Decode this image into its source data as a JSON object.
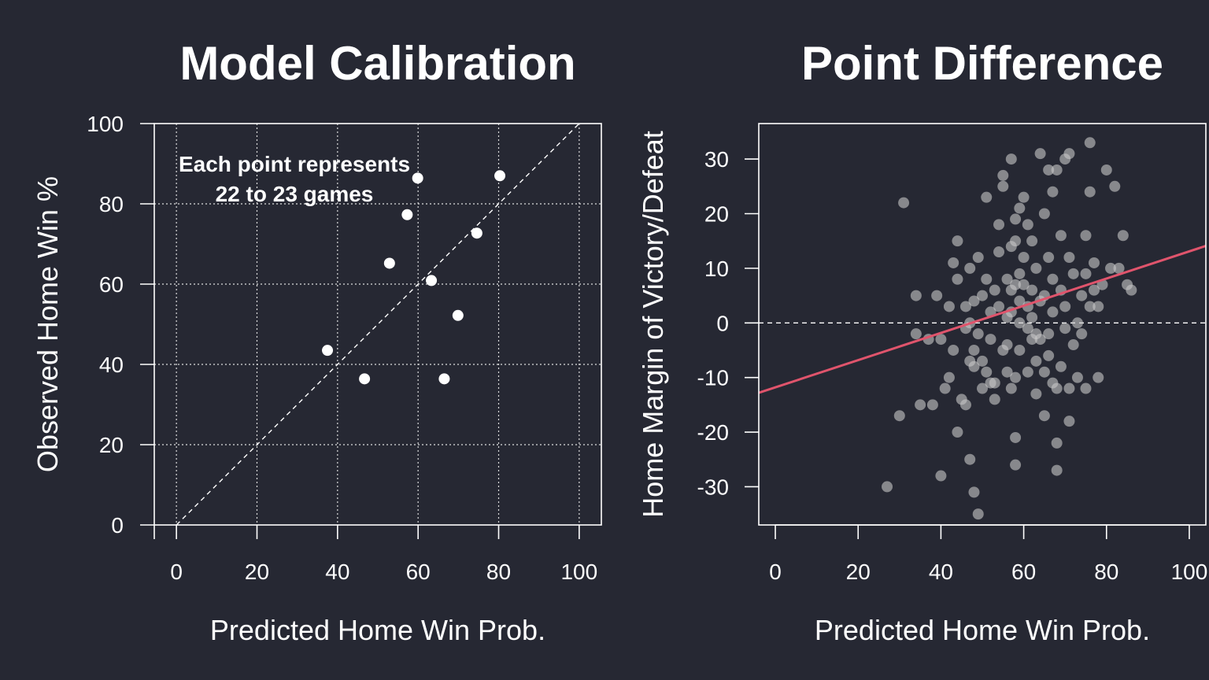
{
  "colors": {
    "background": "#262833",
    "foreground": "#ffffff",
    "points_left": "#ffffff",
    "points_right": "#c8c8c8",
    "regression_line": "#e0546c"
  },
  "chart_data": [
    {
      "type": "scatter",
      "title": "Model Calibration",
      "xlabel": "Predicted Home Win Prob.",
      "ylabel": "Observed Home Win %",
      "xlim": [
        -5.5,
        105.5
      ],
      "ylim": [
        0,
        100
      ],
      "xticks": [
        "0",
        "20",
        "40",
        "60",
        "80",
        "100"
      ],
      "yticks": [
        "0",
        "20",
        "40",
        "60",
        "80",
        "100"
      ],
      "grid": true,
      "reference_line": "y = x",
      "annotation": [
        "Each point represents",
        "22 to 23 games"
      ],
      "points": [
        {
          "x": 37.5,
          "y": 43.5
        },
        {
          "x": 46.7,
          "y": 36.4
        },
        {
          "x": 52.9,
          "y": 65.2
        },
        {
          "x": 57.3,
          "y": 77.3
        },
        {
          "x": 59.9,
          "y": 86.4
        },
        {
          "x": 63.3,
          "y": 60.9
        },
        {
          "x": 66.5,
          "y": 36.4
        },
        {
          "x": 69.9,
          "y": 52.2
        },
        {
          "x": 74.6,
          "y": 72.7
        },
        {
          "x": 80.3,
          "y": 87.0
        }
      ]
    },
    {
      "type": "scatter",
      "title": "Point Difference",
      "xlabel": "Predicted Home Win Prob.",
      "ylabel": "Home Margin of Victory/Defeat",
      "xlim": [
        -4,
        104
      ],
      "ylim": [
        -37,
        36.5
      ],
      "xticks": [
        "0",
        "20",
        "40",
        "60",
        "80",
        "100"
      ],
      "yticks": [
        "-30",
        "-20",
        "-10",
        "0",
        "10",
        "20",
        "30"
      ],
      "grid": false,
      "zero_line": true,
      "trend_line": {
        "slope": 0.249,
        "intercept": -11.8
      },
      "points": [
        [
          31,
          22
        ],
        [
          27,
          -30
        ],
        [
          30,
          -17
        ],
        [
          34,
          5
        ],
        [
          35,
          -15
        ],
        [
          37,
          -3
        ],
        [
          34,
          -2
        ],
        [
          38,
          -15
        ],
        [
          39,
          5
        ],
        [
          40,
          -28
        ],
        [
          40,
          -3
        ],
        [
          41,
          -12
        ],
        [
          42,
          3
        ],
        [
          42,
          -10
        ],
        [
          43,
          11
        ],
        [
          43,
          -5
        ],
        [
          44,
          15
        ],
        [
          44,
          8
        ],
        [
          45,
          -14
        ],
        [
          46,
          -15
        ],
        [
          46,
          3
        ],
        [
          46,
          -1
        ],
        [
          47,
          0
        ],
        [
          47,
          -7
        ],
        [
          47,
          10
        ],
        [
          48,
          -5
        ],
        [
          48,
          -8
        ],
        [
          48,
          4
        ],
        [
          49,
          -2
        ],
        [
          49,
          12
        ],
        [
          50,
          -7
        ],
        [
          50,
          -12
        ],
        [
          50,
          5
        ],
        [
          51,
          23
        ],
        [
          51,
          -9
        ],
        [
          51,
          8
        ],
        [
          52,
          -3
        ],
        [
          52,
          -11
        ],
        [
          52,
          2
        ],
        [
          53,
          6
        ],
        [
          53,
          -14
        ],
        [
          54,
          13
        ],
        [
          54,
          18
        ],
        [
          54,
          3
        ],
        [
          55,
          -5
        ],
        [
          55,
          27
        ],
        [
          55,
          25
        ],
        [
          56,
          -9
        ],
        [
          56,
          -4
        ],
        [
          56,
          8
        ],
        [
          56,
          1
        ],
        [
          57,
          30
        ],
        [
          57,
          14
        ],
        [
          57,
          -12
        ],
        [
          57,
          6
        ],
        [
          57,
          2
        ],
        [
          58,
          19
        ],
        [
          58,
          -21
        ],
        [
          58,
          -26
        ],
        [
          58,
          7
        ],
        [
          58,
          15
        ],
        [
          59,
          -5
        ],
        [
          59,
          21
        ],
        [
          59,
          9
        ],
        [
          59,
          4
        ],
        [
          59,
          0
        ],
        [
          60,
          23
        ],
        [
          60,
          7
        ],
        [
          60,
          12
        ],
        [
          61,
          -1
        ],
        [
          61,
          -9
        ],
        [
          61,
          3
        ],
        [
          61,
          18
        ],
        [
          62,
          1
        ],
        [
          62,
          -3
        ],
        [
          62,
          6
        ],
        [
          62,
          15
        ],
        [
          63,
          -7
        ],
        [
          63,
          -2
        ],
        [
          63,
          10
        ],
        [
          64,
          31
        ],
        [
          64,
          -3
        ],
        [
          64,
          4
        ],
        [
          65,
          -9
        ],
        [
          65,
          -17
        ],
        [
          65,
          20
        ],
        [
          65,
          5
        ],
        [
          66,
          -2
        ],
        [
          66,
          12
        ],
        [
          66,
          28
        ],
        [
          66,
          -6
        ],
        [
          67,
          -11
        ],
        [
          67,
          2
        ],
        [
          67,
          24
        ],
        [
          67,
          8
        ],
        [
          68,
          -27
        ],
        [
          68,
          -22
        ],
        [
          68,
          28
        ],
        [
          68,
          -12
        ],
        [
          69,
          16
        ],
        [
          69,
          6
        ],
        [
          69,
          -8
        ],
        [
          70,
          30
        ],
        [
          70,
          -1
        ],
        [
          70,
          3
        ],
        [
          71,
          -18
        ],
        [
          71,
          -12
        ],
        [
          71,
          31
        ],
        [
          71,
          12
        ],
        [
          72,
          9
        ],
        [
          72,
          -4
        ],
        [
          73,
          -10
        ],
        [
          73,
          0
        ],
        [
          74,
          -2
        ],
        [
          74,
          5
        ],
        [
          75,
          16
        ],
        [
          75,
          -12
        ],
        [
          75,
          9
        ],
        [
          76,
          33
        ],
        [
          76,
          24
        ],
        [
          76,
          3
        ],
        [
          77,
          6
        ],
        [
          77,
          11
        ],
        [
          78,
          -10
        ],
        [
          78,
          3
        ],
        [
          79,
          7
        ],
        [
          80,
          28
        ],
        [
          81,
          10
        ],
        [
          82,
          25
        ],
        [
          83,
          10
        ],
        [
          84,
          16
        ],
        [
          85,
          7
        ],
        [
          86,
          6
        ],
        [
          44,
          -20
        ],
        [
          47,
          -25
        ],
        [
          48,
          -31
        ],
        [
          49,
          -35
        ],
        [
          53,
          -11
        ],
        [
          58,
          -10
        ],
        [
          63,
          -13
        ]
      ]
    }
  ]
}
